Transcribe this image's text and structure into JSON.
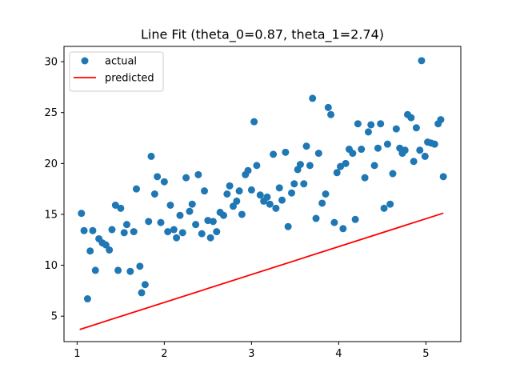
{
  "chart_data": {
    "type": "scatter",
    "title": "Line Fit (theta_0=0.87, theta_1=2.74)",
    "xlabel": "",
    "ylabel": "",
    "xlim": [
      0.85,
      5.4
    ],
    "ylim": [
      2.5,
      31.5
    ],
    "xticks": [
      1,
      2,
      3,
      4,
      5
    ],
    "yticks": [
      5,
      10,
      15,
      20,
      25,
      30
    ],
    "xtick_labels": [
      "1",
      "2",
      "3",
      "4",
      "5"
    ],
    "ytick_labels": [
      "5",
      "10",
      "15",
      "20",
      "25",
      "30"
    ],
    "grid": false,
    "legend": {
      "position": "top-left",
      "entries": [
        "actual",
        "predicted"
      ]
    },
    "series": [
      {
        "name": "actual",
        "type": "scatter",
        "color": "#1f77b4",
        "points": [
          [
            1.05,
            15.1
          ],
          [
            1.08,
            13.4
          ],
          [
            1.12,
            6.7
          ],
          [
            1.15,
            11.4
          ],
          [
            1.18,
            13.4
          ],
          [
            1.21,
            9.5
          ],
          [
            1.25,
            12.6
          ],
          [
            1.29,
            12.2
          ],
          [
            1.33,
            12.0
          ],
          [
            1.37,
            11.5
          ],
          [
            1.4,
            13.5
          ],
          [
            1.44,
            15.9
          ],
          [
            1.47,
            9.5
          ],
          [
            1.5,
            15.6
          ],
          [
            1.54,
            13.2
          ],
          [
            1.57,
            14.0
          ],
          [
            1.61,
            9.4
          ],
          [
            1.65,
            13.3
          ],
          [
            1.68,
            17.5
          ],
          [
            1.72,
            9.9
          ],
          [
            1.74,
            7.3
          ],
          [
            1.78,
            8.1
          ],
          [
            1.82,
            14.3
          ],
          [
            1.85,
            20.7
          ],
          [
            1.89,
            17.0
          ],
          [
            1.92,
            18.7
          ],
          [
            1.96,
            14.2
          ],
          [
            2.0,
            18.2
          ],
          [
            2.04,
            13.3
          ],
          [
            2.07,
            15.9
          ],
          [
            2.11,
            13.5
          ],
          [
            2.14,
            12.7
          ],
          [
            2.18,
            14.9
          ],
          [
            2.21,
            13.2
          ],
          [
            2.25,
            18.6
          ],
          [
            2.29,
            15.3
          ],
          [
            2.32,
            16.0
          ],
          [
            2.36,
            14.0
          ],
          [
            2.39,
            18.9
          ],
          [
            2.43,
            13.1
          ],
          [
            2.46,
            17.3
          ],
          [
            2.5,
            14.4
          ],
          [
            2.53,
            12.7
          ],
          [
            2.56,
            14.3
          ],
          [
            2.6,
            13.3
          ],
          [
            2.64,
            15.2
          ],
          [
            2.68,
            14.9
          ],
          [
            2.72,
            17.0
          ],
          [
            2.75,
            17.8
          ],
          [
            2.79,
            15.8
          ],
          [
            2.83,
            16.3
          ],
          [
            2.86,
            17.3
          ],
          [
            2.89,
            15.0
          ],
          [
            2.93,
            18.9
          ],
          [
            2.96,
            19.3
          ],
          [
            3.0,
            17.4
          ],
          [
            3.03,
            24.1
          ],
          [
            3.06,
            19.8
          ],
          [
            3.1,
            16.9
          ],
          [
            3.14,
            16.3
          ],
          [
            3.18,
            16.7
          ],
          [
            3.21,
            16.0
          ],
          [
            3.25,
            20.9
          ],
          [
            3.28,
            15.6
          ],
          [
            3.32,
            17.6
          ],
          [
            3.35,
            16.4
          ],
          [
            3.39,
            21.1
          ],
          [
            3.42,
            13.8
          ],
          [
            3.46,
            17.1
          ],
          [
            3.49,
            18.0
          ],
          [
            3.53,
            19.4
          ],
          [
            3.56,
            19.9
          ],
          [
            3.6,
            18.0
          ],
          [
            3.63,
            21.7
          ],
          [
            3.67,
            19.8
          ],
          [
            3.7,
            26.4
          ],
          [
            3.74,
            14.6
          ],
          [
            3.77,
            21.0
          ],
          [
            3.81,
            16.1
          ],
          [
            3.85,
            17.0
          ],
          [
            3.88,
            25.5
          ],
          [
            3.91,
            24.8
          ],
          [
            3.95,
            14.2
          ],
          [
            3.98,
            19.1
          ],
          [
            4.02,
            19.7
          ],
          [
            4.05,
            13.6
          ],
          [
            4.08,
            20.0
          ],
          [
            4.12,
            21.4
          ],
          [
            4.16,
            21.0
          ],
          [
            4.19,
            14.5
          ],
          [
            4.22,
            23.9
          ],
          [
            4.26,
            21.4
          ],
          [
            4.3,
            18.6
          ],
          [
            4.34,
            23.1
          ],
          [
            4.37,
            23.8
          ],
          [
            4.41,
            19.8
          ],
          [
            4.45,
            21.5
          ],
          [
            4.48,
            23.9
          ],
          [
            4.52,
            15.6
          ],
          [
            4.56,
            21.9
          ],
          [
            4.59,
            16.0
          ],
          [
            4.62,
            19.0
          ],
          [
            4.66,
            23.4
          ],
          [
            4.7,
            21.5
          ],
          [
            4.73,
            21.0
          ],
          [
            4.76,
            21.3
          ],
          [
            4.79,
            24.8
          ],
          [
            4.83,
            24.5
          ],
          [
            4.86,
            20.2
          ],
          [
            4.89,
            23.5
          ],
          [
            4.93,
            21.3
          ],
          [
            4.95,
            30.1
          ],
          [
            4.99,
            20.7
          ],
          [
            5.02,
            22.1
          ],
          [
            5.06,
            22.0
          ],
          [
            5.1,
            21.9
          ],
          [
            5.14,
            23.9
          ],
          [
            5.17,
            24.3
          ],
          [
            5.2,
            18.7
          ]
        ]
      },
      {
        "name": "predicted",
        "type": "line",
        "color": "#ff0000",
        "points": [
          [
            1.03,
            3.69
          ],
          [
            5.2,
            15.12
          ]
        ]
      }
    ]
  }
}
